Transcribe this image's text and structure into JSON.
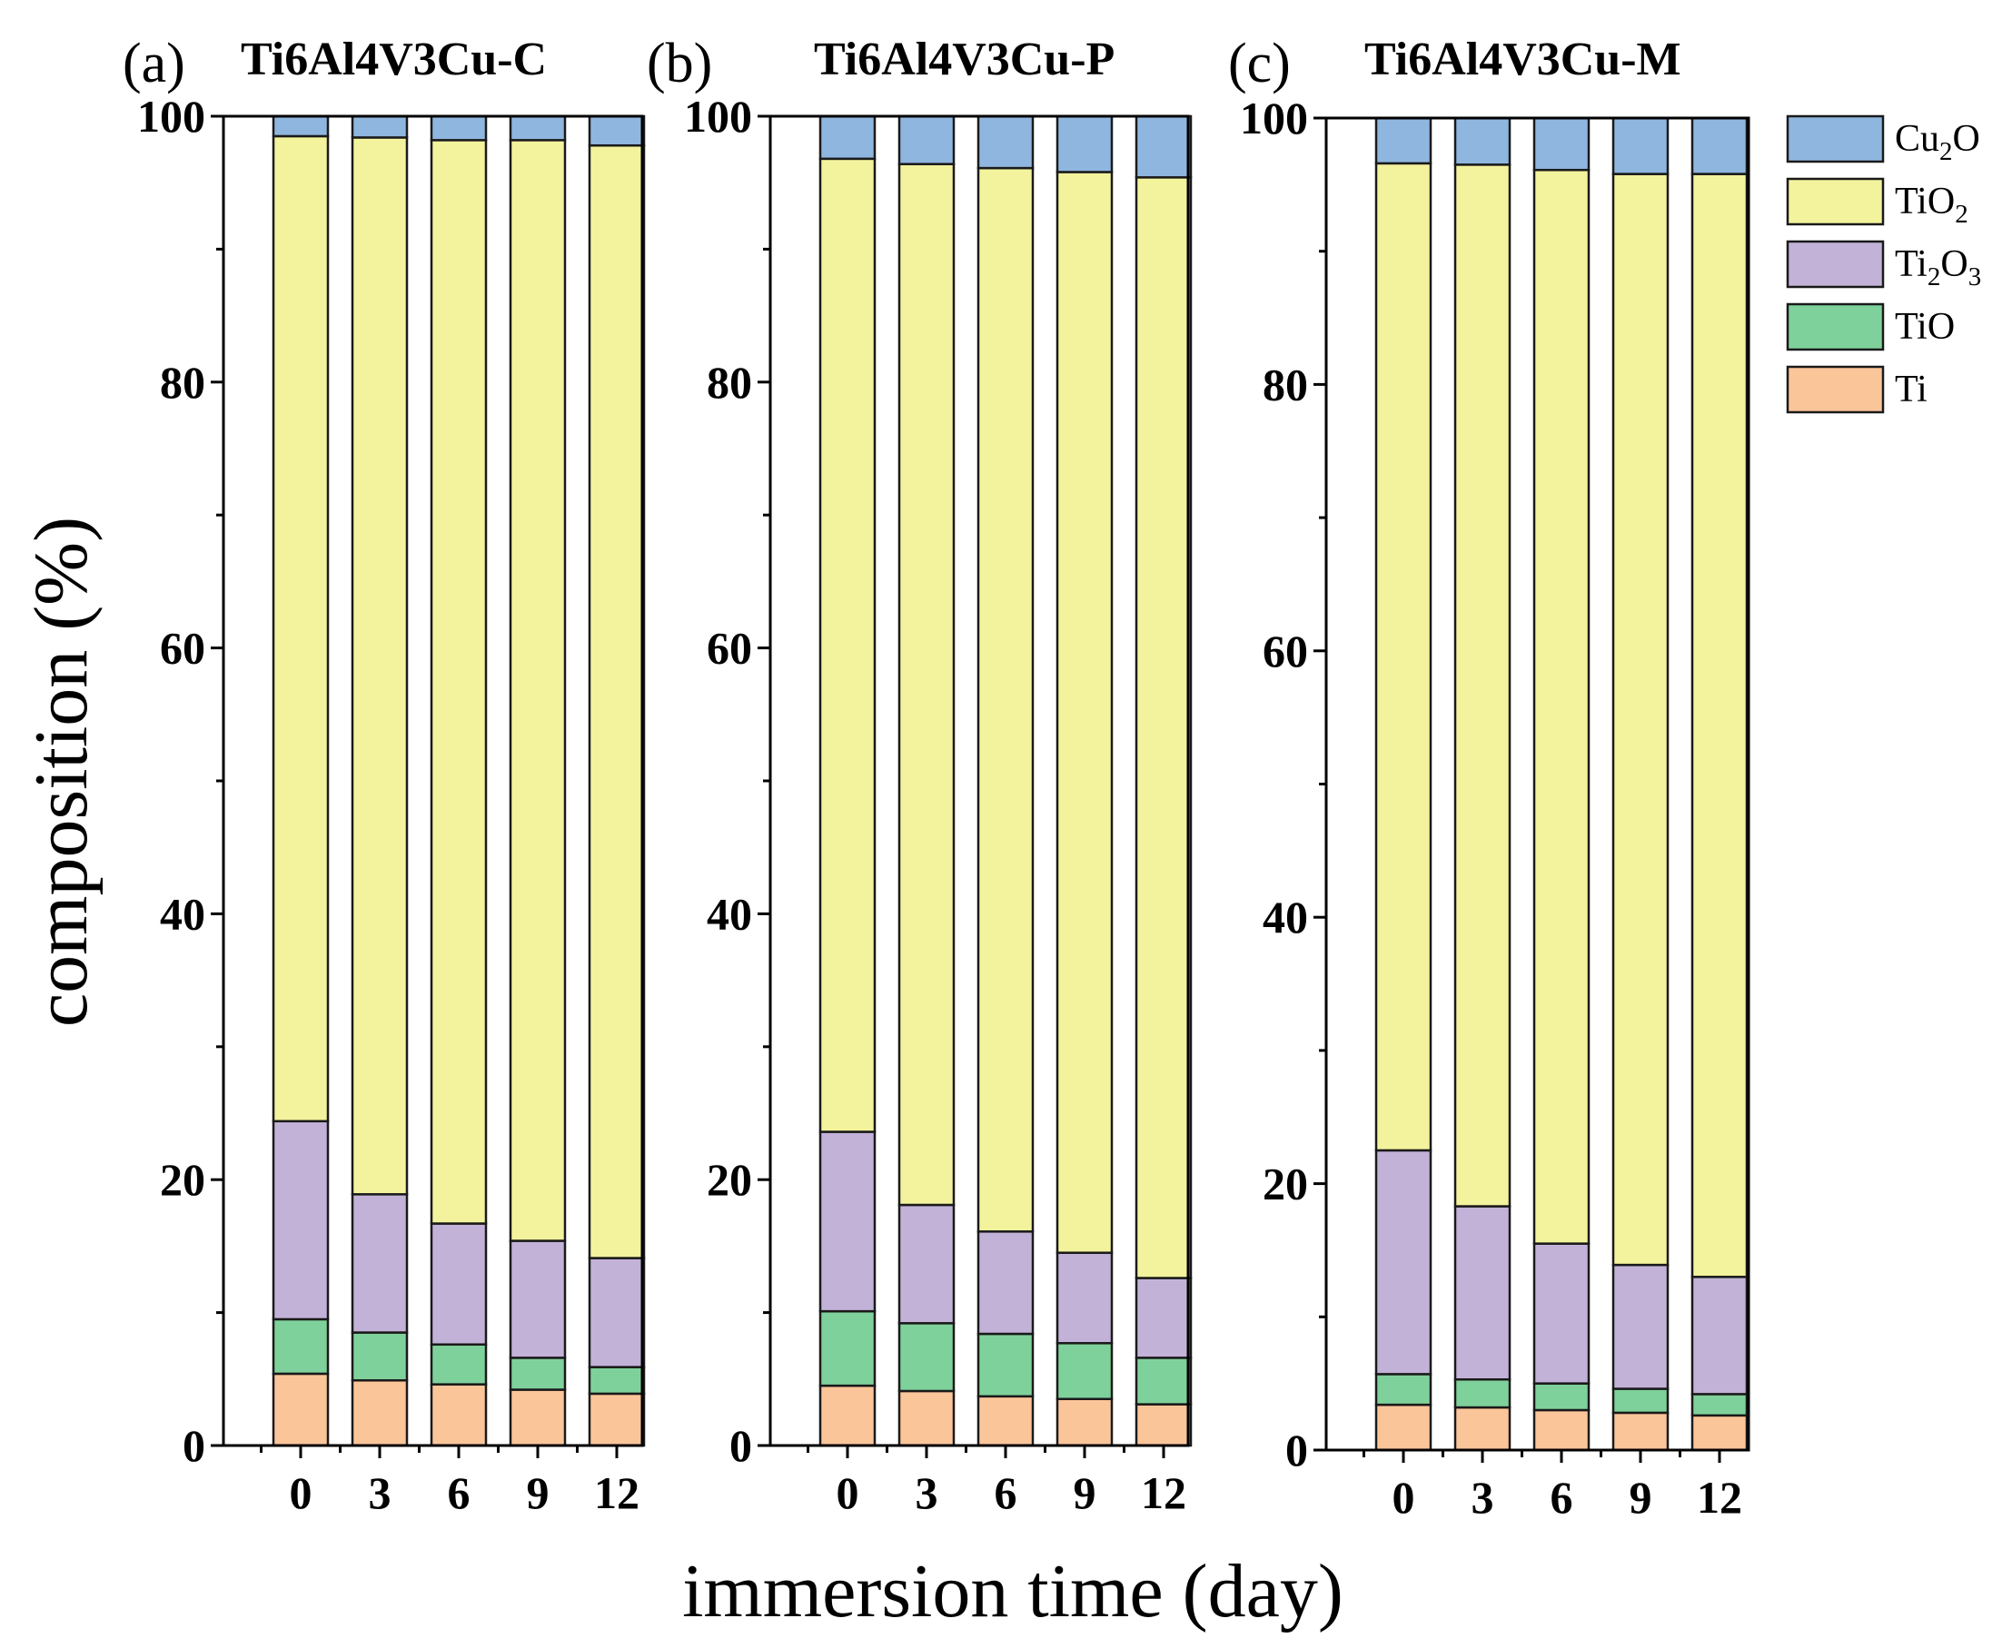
{
  "chart_data": {
    "type": "stacked-bar",
    "xlabel": "immersion time (day)",
    "ylabel": "composition (%)",
    "ylim": [
      0,
      100
    ],
    "yticks": [
      0,
      20,
      40,
      60,
      80,
      100
    ],
    "categories": [
      "0",
      "3",
      "6",
      "9",
      "12"
    ],
    "legend": [
      {
        "key": "Cu2O",
        "base": "Cu",
        "sub": "2",
        "tail": "O",
        "color": "#8fb6df"
      },
      {
        "key": "TiO2",
        "base": "TiO",
        "sub": "2",
        "tail": "",
        "color": "#f3f39d"
      },
      {
        "key": "Ti2O3",
        "base": "Ti",
        "sub": "2",
        "tail": "O",
        "sub2": "3",
        "color": "#c3b2d8"
      },
      {
        "key": "TiO",
        "base": "TiO",
        "sub": "",
        "tail": "",
        "color": "#7fd19b"
      },
      {
        "key": "Ti",
        "base": "Ti",
        "sub": "",
        "tail": "",
        "color": "#fbc59a"
      }
    ],
    "panels": [
      {
        "tag": "(a)",
        "title": "Ti6Al4V3Cu-C",
        "series": [
          {
            "name": "Ti",
            "values": [
              5.4,
              4.9,
              4.6,
              4.2,
              3.9
            ]
          },
          {
            "name": "TiO",
            "values": [
              4.1,
              3.6,
              3.0,
              2.4,
              2.0
            ]
          },
          {
            "name": "Ti2O3",
            "values": [
              14.9,
              10.4,
              9.1,
              8.8,
              8.2
            ]
          },
          {
            "name": "TiO2",
            "values": [
              74.1,
              79.5,
              81.5,
              82.8,
              83.7
            ]
          },
          {
            "name": "Cu2O",
            "values": [
              1.5,
              1.6,
              1.8,
              1.8,
              2.2
            ]
          }
        ]
      },
      {
        "tag": "(b)",
        "title": "Ti6Al4V3Cu-P",
        "series": [
          {
            "name": "Ti",
            "values": [
              4.5,
              4.1,
              3.7,
              3.5,
              3.1
            ]
          },
          {
            "name": "TiO",
            "values": [
              5.6,
              5.1,
              4.7,
              4.2,
              3.5
            ]
          },
          {
            "name": "Ti2O3",
            "values": [
              13.5,
              8.9,
              7.7,
              6.8,
              6.0
            ]
          },
          {
            "name": "TiO2",
            "values": [
              73.2,
              78.3,
              80.0,
              81.3,
              82.8
            ]
          },
          {
            "name": "Cu2O",
            "values": [
              3.2,
              3.6,
              3.9,
              4.2,
              4.6
            ]
          }
        ]
      },
      {
        "tag": "(c)",
        "title": "Ti6Al4V3Cu-M",
        "series": [
          {
            "name": "Ti",
            "values": [
              3.4,
              3.2,
              3.0,
              2.8,
              2.6
            ]
          },
          {
            "name": "TiO",
            "values": [
              2.3,
              2.1,
              2.0,
              1.8,
              1.6
            ]
          },
          {
            "name": "Ti2O3",
            "values": [
              16.8,
              13.0,
              10.5,
              9.3,
              8.8
            ]
          },
          {
            "name": "TiO2",
            "values": [
              74.1,
              78.2,
              80.6,
              81.9,
              82.8
            ]
          },
          {
            "name": "Cu2O",
            "values": [
              3.4,
              3.5,
              3.9,
              4.2,
              4.2
            ]
          }
        ]
      }
    ]
  }
}
